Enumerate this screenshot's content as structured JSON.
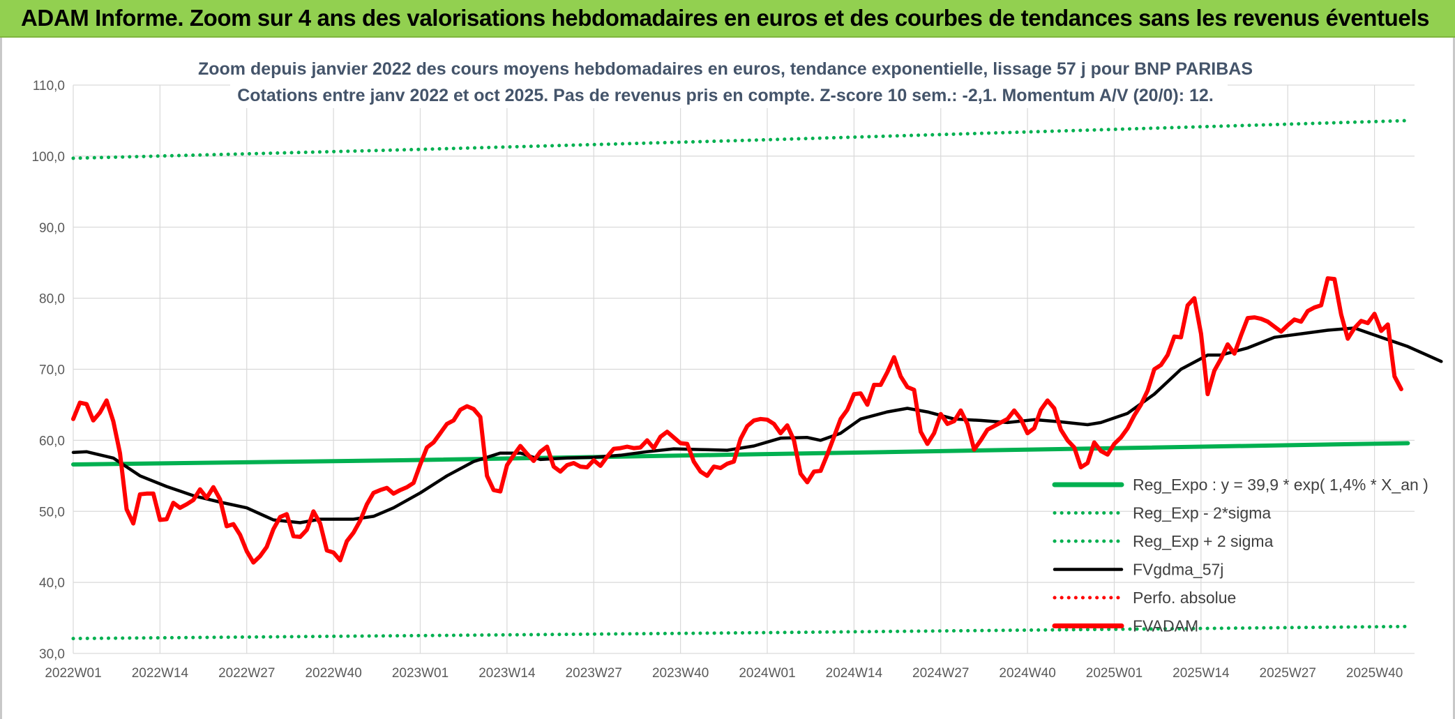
{
  "header": {
    "banner_title": "ADAM Informe. Zoom sur 4 ans des valorisations hebdomadaires en euros et des courbes de tendances sans les revenus éventuels"
  },
  "chart_data": {
    "type": "line",
    "title": "Zoom depuis janvier 2022 des cours moyens hebdomadaires en euros, tendance exponentielle, lissage 57 j pour BNP PARIBAS",
    "subtitle": "Cotations entre janv 2022 et oct 2025. Pas de revenus pris en compte. Z-score 10 sem.: -2,1. Momentum A/V (20/0): 12.",
    "xlabel": "",
    "ylabel": "",
    "ylim": [
      30,
      110
    ],
    "y_ticks": [
      30,
      40,
      50,
      60,
      70,
      80,
      90,
      100,
      110
    ],
    "y_tick_labels": [
      "30,0",
      "40,0",
      "50,0",
      "60,0",
      "70,0",
      "80,0",
      "90,0",
      "100,0",
      "110,0"
    ],
    "x_tick_labels": [
      "2022W01",
      "2022W14",
      "2022W27",
      "2022W40",
      "2023W01",
      "2023W14",
      "2023W27",
      "2023W40",
      "2024W01",
      "2024W14",
      "2024W27",
      "2024W40",
      "2025W01",
      "2025W14",
      "2025W27",
      "2025W40"
    ],
    "x_tick_index": [
      0,
      13,
      26,
      39,
      52,
      65,
      78,
      91,
      104,
      117,
      130,
      143,
      156,
      169,
      182,
      195
    ],
    "week_count": 201,
    "grid": true,
    "legend_position": "bottom-right",
    "series": [
      {
        "name": "Reg_Expo : y = 39,9 * exp( 1,4% *  X_an )",
        "style": "solid",
        "color": "#00b050",
        "anchors": [
          [
            0,
            56.6
          ],
          [
            50,
            57.2
          ],
          [
            100,
            58.0
          ],
          [
            150,
            58.8
          ],
          [
            200,
            59.6
          ]
        ]
      },
      {
        "name": "Reg_Exp - 2*sigma",
        "style": "dotted",
        "color": "#00b050",
        "anchors": [
          [
            0,
            32.1
          ],
          [
            100,
            32.9
          ],
          [
            200,
            33.8
          ]
        ]
      },
      {
        "name": "Reg_Exp + 2 sigma",
        "style": "dotted",
        "color": "#00b050",
        "anchors": [
          [
            0,
            99.7
          ],
          [
            50,
            100.9
          ],
          [
            100,
            102.2
          ],
          [
            150,
            103.6
          ],
          [
            200,
            105.0
          ]
        ]
      },
      {
        "name": "FVgdma_57j",
        "style": "solid",
        "color": "#000000",
        "anchors": [
          [
            0,
            58.3
          ],
          [
            2,
            58.4
          ],
          [
            6,
            57.5
          ],
          [
            10,
            55.0
          ],
          [
            14,
            53.5
          ],
          [
            18,
            52.2
          ],
          [
            22,
            51.3
          ],
          [
            26,
            50.5
          ],
          [
            30,
            48.8
          ],
          [
            34,
            48.4
          ],
          [
            37,
            48.9
          ],
          [
            42,
            48.9
          ],
          [
            45,
            49.3
          ],
          [
            48,
            50.5
          ],
          [
            52,
            52.6
          ],
          [
            56,
            55.0
          ],
          [
            60,
            57.0
          ],
          [
            64,
            58.2
          ],
          [
            67,
            58.2
          ],
          [
            70,
            57.3
          ],
          [
            74,
            57.5
          ],
          [
            78,
            57.6
          ],
          [
            82,
            57.9
          ],
          [
            86,
            58.4
          ],
          [
            90,
            58.8
          ],
          [
            94,
            58.7
          ],
          [
            98,
            58.6
          ],
          [
            102,
            59.2
          ],
          [
            106,
            60.3
          ],
          [
            110,
            60.4
          ],
          [
            112,
            60.0
          ],
          [
            115,
            61.0
          ],
          [
            118,
            63.0
          ],
          [
            122,
            64.0
          ],
          [
            125,
            64.5
          ],
          [
            128,
            64.0
          ],
          [
            132,
            63.0
          ],
          [
            136,
            62.8
          ],
          [
            140,
            62.5
          ],
          [
            144,
            62.9
          ],
          [
            148,
            62.6
          ],
          [
            152,
            62.2
          ],
          [
            154,
            62.5
          ],
          [
            158,
            63.8
          ],
          [
            162,
            66.5
          ],
          [
            166,
            70.0
          ],
          [
            170,
            72.0
          ],
          [
            172,
            72.0
          ],
          [
            176,
            73.0
          ],
          [
            180,
            74.5
          ],
          [
            184,
            75.0
          ],
          [
            188,
            75.5
          ],
          [
            192,
            75.8
          ],
          [
            196,
            74.5
          ],
          [
            200,
            73.2
          ],
          [
            205,
            71.1
          ]
        ]
      },
      {
        "name": "Perfo. absolue",
        "style": "dotted",
        "color": "#ff0000",
        "anchors": []
      },
      {
        "name": "FVADAM",
        "style": "solid",
        "color": "#ff0000",
        "anchors": [
          [
            0,
            63.0
          ],
          [
            1,
            65.3
          ],
          [
            2,
            65.1
          ],
          [
            3,
            62.8
          ],
          [
            4,
            63.9
          ],
          [
            5,
            65.6
          ],
          [
            6,
            62.7
          ],
          [
            7,
            58.2
          ],
          [
            8,
            50.3
          ],
          [
            9,
            48.3
          ],
          [
            10,
            52.4
          ],
          [
            11,
            52.5
          ],
          [
            12,
            52.5
          ],
          [
            13,
            48.8
          ],
          [
            14,
            48.9
          ],
          [
            15,
            51.2
          ],
          [
            16,
            50.5
          ],
          [
            17,
            51.0
          ],
          [
            18,
            51.6
          ],
          [
            19,
            53.1
          ],
          [
            20,
            51.9
          ],
          [
            21,
            53.4
          ],
          [
            22,
            51.7
          ],
          [
            23,
            47.9
          ],
          [
            24,
            48.2
          ],
          [
            25,
            46.7
          ],
          [
            26,
            44.4
          ],
          [
            27,
            42.8
          ],
          [
            28,
            43.7
          ],
          [
            29,
            45.0
          ],
          [
            30,
            47.5
          ],
          [
            31,
            49.2
          ],
          [
            32,
            49.6
          ],
          [
            33,
            46.5
          ],
          [
            34,
            46.4
          ],
          [
            35,
            47.4
          ],
          [
            36,
            50.0
          ],
          [
            37,
            48.3
          ],
          [
            38,
            44.5
          ],
          [
            39,
            44.2
          ],
          [
            40,
            43.1
          ],
          [
            41,
            45.8
          ],
          [
            42,
            47.0
          ],
          [
            43,
            48.7
          ],
          [
            44,
            51.0
          ],
          [
            45,
            52.6
          ],
          [
            46,
            53.0
          ],
          [
            47,
            53.3
          ],
          [
            48,
            52.5
          ],
          [
            49,
            53.0
          ],
          [
            50,
            53.4
          ],
          [
            51,
            54.0
          ],
          [
            52,
            56.6
          ],
          [
            53,
            59.0
          ],
          [
            54,
            59.7
          ],
          [
            55,
            61.0
          ],
          [
            56,
            62.3
          ],
          [
            57,
            62.8
          ],
          [
            58,
            64.3
          ],
          [
            59,
            64.8
          ],
          [
            60,
            64.4
          ],
          [
            61,
            63.3
          ],
          [
            62,
            55.0
          ],
          [
            63,
            53.0
          ],
          [
            64,
            52.8
          ],
          [
            65,
            56.5
          ],
          [
            66,
            57.9
          ],
          [
            67,
            59.2
          ],
          [
            68,
            58.1
          ],
          [
            69,
            57.1
          ],
          [
            70,
            58.4
          ],
          [
            71,
            59.1
          ],
          [
            72,
            56.3
          ],
          [
            73,
            55.6
          ],
          [
            74,
            56.5
          ],
          [
            75,
            56.8
          ],
          [
            76,
            56.3
          ],
          [
            77,
            56.2
          ],
          [
            78,
            57.2
          ],
          [
            79,
            56.4
          ],
          [
            80,
            57.7
          ],
          [
            81,
            58.8
          ],
          [
            82,
            58.9
          ],
          [
            83,
            59.1
          ],
          [
            84,
            58.9
          ],
          [
            85,
            59.0
          ],
          [
            86,
            60.0
          ],
          [
            87,
            58.9
          ],
          [
            88,
            60.5
          ],
          [
            89,
            61.2
          ],
          [
            90,
            60.4
          ],
          [
            91,
            59.6
          ],
          [
            92,
            59.5
          ],
          [
            93,
            57.0
          ],
          [
            94,
            55.6
          ],
          [
            95,
            55.0
          ],
          [
            96,
            56.3
          ],
          [
            97,
            56.1
          ],
          [
            98,
            56.7
          ],
          [
            99,
            57.0
          ],
          [
            100,
            60.2
          ],
          [
            101,
            62.0
          ],
          [
            102,
            62.8
          ],
          [
            103,
            63.0
          ],
          [
            104,
            62.9
          ],
          [
            105,
            62.3
          ],
          [
            106,
            61.0
          ],
          [
            107,
            62.1
          ],
          [
            108,
            60.0
          ],
          [
            109,
            55.3
          ],
          [
            110,
            54.1
          ],
          [
            111,
            55.6
          ],
          [
            112,
            55.7
          ],
          [
            113,
            58.0
          ],
          [
            114,
            60.5
          ],
          [
            115,
            63.0
          ],
          [
            116,
            64.3
          ],
          [
            117,
            66.5
          ],
          [
            118,
            66.6
          ],
          [
            119,
            65.0
          ],
          [
            120,
            67.8
          ],
          [
            121,
            67.8
          ],
          [
            122,
            69.6
          ],
          [
            123,
            71.7
          ],
          [
            124,
            69.0
          ],
          [
            125,
            67.5
          ],
          [
            126,
            67.1
          ],
          [
            127,
            61.2
          ],
          [
            128,
            59.5
          ],
          [
            129,
            61.0
          ],
          [
            130,
            63.7
          ],
          [
            131,
            62.3
          ],
          [
            132,
            62.7
          ],
          [
            133,
            64.2
          ],
          [
            134,
            62.3
          ],
          [
            135,
            58.7
          ],
          [
            136,
            60.0
          ],
          [
            137,
            61.5
          ],
          [
            138,
            62.0
          ],
          [
            139,
            62.5
          ],
          [
            140,
            63.0
          ],
          [
            141,
            64.2
          ],
          [
            142,
            63.0
          ],
          [
            143,
            61.0
          ],
          [
            144,
            61.7
          ],
          [
            145,
            64.3
          ],
          [
            146,
            65.6
          ],
          [
            147,
            64.5
          ],
          [
            148,
            61.5
          ],
          [
            149,
            60.0
          ],
          [
            150,
            59.0
          ],
          [
            151,
            56.2
          ],
          [
            152,
            56.8
          ],
          [
            153,
            59.7
          ],
          [
            154,
            58.5
          ],
          [
            155,
            58.0
          ],
          [
            156,
            59.5
          ],
          [
            157,
            60.4
          ],
          [
            158,
            61.7
          ],
          [
            159,
            63.5
          ],
          [
            160,
            65.0
          ],
          [
            161,
            67.0
          ],
          [
            162,
            70.0
          ],
          [
            163,
            70.6
          ],
          [
            164,
            72.0
          ],
          [
            165,
            74.6
          ],
          [
            166,
            74.5
          ],
          [
            167,
            79.0
          ],
          [
            168,
            80.0
          ],
          [
            169,
            75.0
          ],
          [
            170,
            66.5
          ],
          [
            171,
            69.8
          ],
          [
            172,
            71.5
          ],
          [
            173,
            73.5
          ],
          [
            174,
            72.2
          ],
          [
            175,
            74.8
          ],
          [
            176,
            77.2
          ],
          [
            177,
            77.3
          ],
          [
            178,
            77.1
          ],
          [
            179,
            76.7
          ],
          [
            180,
            76.0
          ],
          [
            181,
            75.3
          ],
          [
            182,
            76.2
          ],
          [
            183,
            77.0
          ],
          [
            184,
            76.7
          ],
          [
            185,
            78.2
          ],
          [
            186,
            78.7
          ],
          [
            187,
            79.0
          ],
          [
            188,
            82.8
          ],
          [
            189,
            82.7
          ],
          [
            190,
            77.7
          ],
          [
            191,
            74.3
          ],
          [
            192,
            75.8
          ],
          [
            193,
            76.8
          ],
          [
            194,
            76.5
          ],
          [
            195,
            77.8
          ],
          [
            196,
            75.4
          ],
          [
            197,
            76.3
          ],
          [
            198,
            69.0
          ],
          [
            199,
            67.2
          ]
        ]
      }
    ]
  }
}
